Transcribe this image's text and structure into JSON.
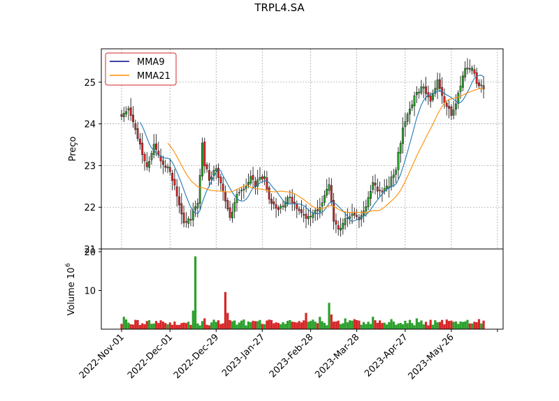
{
  "chart_data": [
    {
      "type": "candlestick",
      "title": "TRPL4.SA",
      "ylabel": "Preço",
      "ylim": [
        21,
        25.8
      ],
      "yticks": [
        21,
        22,
        23,
        24,
        25
      ],
      "grid": true,
      "legend": {
        "position": "top-left",
        "entries": [
          {
            "name": "MMA9",
            "color": "#00008b"
          },
          {
            "name": "MMA21",
            "color": "#ff8c00"
          }
        ]
      },
      "x_tick_labels": [
        "2022-Nov-01",
        "2022-Dec-01",
        "2022-Dec-29",
        "2023-Jan-27",
        "2023-Feb-28",
        "2023-Mar-28",
        "2023-Apr-27",
        "2023-May-26"
      ],
      "x_tick_index": [
        0,
        21,
        41,
        61,
        82,
        102,
        123,
        143
      ],
      "n_bars": 158,
      "close_anchors": [
        [
          0,
          24.15
        ],
        [
          3,
          24.35
        ],
        [
          5,
          24.0
        ],
        [
          9,
          23.3
        ],
        [
          11,
          22.95
        ],
        [
          14,
          23.5
        ],
        [
          17,
          23.15
        ],
        [
          20,
          22.95
        ],
        [
          23,
          22.55
        ],
        [
          27,
          21.6
        ],
        [
          30,
          21.75
        ],
        [
          33,
          22.1
        ],
        [
          35,
          23.5
        ],
        [
          36,
          23.05
        ],
        [
          38,
          22.7
        ],
        [
          41,
          22.9
        ],
        [
          44,
          22.35
        ],
        [
          47,
          21.75
        ],
        [
          50,
          22.3
        ],
        [
          53,
          22.4
        ],
        [
          56,
          22.7
        ],
        [
          58,
          22.55
        ],
        [
          60,
          22.75
        ],
        [
          62,
          22.7
        ],
        [
          64,
          22.25
        ],
        [
          67,
          21.95
        ],
        [
          70,
          22.05
        ],
        [
          73,
          22.25
        ],
        [
          76,
          21.95
        ],
        [
          79,
          21.8
        ],
        [
          82,
          21.75
        ],
        [
          86,
          22.05
        ],
        [
          90,
          22.5
        ],
        [
          92,
          21.65
        ],
        [
          94,
          21.45
        ],
        [
          97,
          21.75
        ],
        [
          100,
          21.85
        ],
        [
          103,
          21.75
        ],
        [
          106,
          22.05
        ],
        [
          109,
          22.55
        ],
        [
          112,
          22.35
        ],
        [
          114,
          22.4
        ],
        [
          116,
          22.55
        ],
        [
          119,
          22.95
        ],
        [
          122,
          23.9
        ],
        [
          125,
          24.4
        ],
        [
          128,
          24.75
        ],
        [
          131,
          24.9
        ],
        [
          134,
          24.55
        ],
        [
          137,
          25.05
        ],
        [
          140,
          24.55
        ],
        [
          143,
          24.2
        ],
        [
          146,
          24.7
        ],
        [
          149,
          25.35
        ],
        [
          152,
          25.3
        ],
        [
          154,
          25.0
        ],
        [
          157,
          24.85
        ]
      ],
      "volume": {
        "ylabel": "Volume  10",
        "exponent": "6",
        "ylim": [
          0,
          20
        ],
        "yticks": [
          10,
          20
        ],
        "spikes": [
          [
            1,
            3.2
          ],
          [
            16,
            1.6
          ],
          [
            32,
            18.8
          ],
          [
            31,
            4.8
          ],
          [
            36,
            2.8
          ],
          [
            45,
            9.6
          ],
          [
            46,
            4.2
          ],
          [
            80,
            4.2
          ],
          [
            86,
            3.2
          ],
          [
            90,
            6.8
          ],
          [
            91,
            3.8
          ],
          [
            97,
            2.8
          ],
          [
            101,
            2.6
          ],
          [
            109,
            3.2
          ],
          [
            117,
            2.6
          ],
          [
            128,
            2.8
          ],
          [
            141,
            2.5
          ],
          [
            150,
            2.4
          ],
          [
            155,
            2.6
          ]
        ],
        "base_level": 1.8
      }
    }
  ]
}
